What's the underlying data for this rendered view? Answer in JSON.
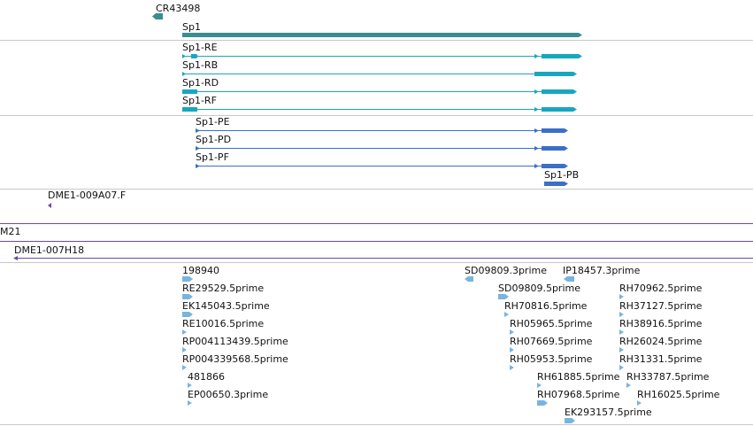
{
  "colors": {
    "transcript_teal": "#3a8e91",
    "transcript_cyan": "#1aa6c0",
    "transcript_blue": "#3b6fc9",
    "clone_purple": "#6a4aa5",
    "est_lightblue": "#78b4e0",
    "separator_gray": "#c8c8c8",
    "separator_purple": "#6a4aa5"
  },
  "features": {
    "cr43498": "CR43498",
    "sp1": "Sp1",
    "sp1_re": "Sp1-RE",
    "sp1_rb": "Sp1-RB",
    "sp1_rd": "Sp1-RD",
    "sp1_rf": "Sp1-RF",
    "sp1_pe": "Sp1-PE",
    "sp1_pd": "Sp1-PD",
    "sp1_pf": "Sp1-PF",
    "sp1_pb": "Sp1-PB",
    "dme1_009a07": "DME1-009A07.F",
    "m21": "M21",
    "dme1_007h18": "DME1-007H18"
  },
  "ests": [
    "198940",
    "RE29529.5prime",
    "EK145043.5prime",
    "RE10016.5prime",
    "RP004113439.5prime",
    "RP004339568.5prime",
    "481866",
    "EP00650.3prime",
    "SD09809.3prime",
    "IP18457.3prime",
    "SD09809.5prime",
    "RH70816.5prime",
    "RH05965.5prime",
    "RH07669.5prime",
    "RH05953.5prime",
    "RH61885.5prime",
    "RH07968.5prime",
    "EK293157.5prime",
    "RH70962.5prime",
    "RH37127.5prime",
    "RH38916.5prime",
    "RH26024.5prime",
    "RH31331.5prime",
    "RH33787.5prime",
    "RH16025.5prime"
  ]
}
